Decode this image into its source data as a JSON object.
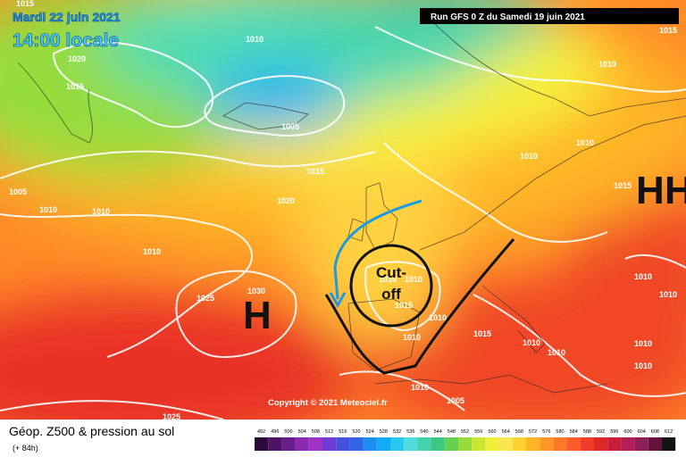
{
  "header": {
    "date": "Mardi 22 juin 2021",
    "time": "14:00 locale",
    "run": "Run GFS 0 Z du Samedi 19 juin 2021"
  },
  "isobar_labels": [
    "1015",
    "1010",
    "1020",
    "1015",
    "1015",
    "1010",
    "1005",
    "1010",
    "1010",
    "1015",
    "1005",
    "1010",
    "1010",
    "1020",
    "1015",
    "1010",
    "1025",
    "1030",
    "1010",
    "1010",
    "1015",
    "1010",
    "1010",
    "1010",
    "1010",
    "1015",
    "1010",
    "1010",
    "1010",
    "1010",
    "1010",
    "1005",
    "1025"
  ],
  "highs": [
    "H",
    "H",
    "H"
  ],
  "annotation": [
    "Cut-",
    "off"
  ],
  "copyright": "Copyright © 2021 Meteociel.fr",
  "legend": {
    "title": "Géop. Z500 & pression au sol",
    "subtitle": "(+ 84h)",
    "values": [
      492,
      496,
      500,
      504,
      508,
      512,
      516,
      520,
      524,
      528,
      532,
      536,
      540,
      544,
      548,
      552,
      556,
      560,
      564,
      568,
      572,
      576,
      580,
      584,
      588,
      592,
      596,
      600,
      604,
      608,
      612
    ],
    "colors": [
      "#2d0a3c",
      "#4b1464",
      "#6a1e8c",
      "#8c28b4",
      "#a032c8",
      "#6e3cd2",
      "#4650dc",
      "#3264e6",
      "#1e8cf0",
      "#14aaf5",
      "#28c8f0",
      "#50dcdc",
      "#46d2aa",
      "#3cc882",
      "#64d250",
      "#96dc3c",
      "#c8e632",
      "#f0f03c",
      "#fae650",
      "#ffd232",
      "#ffb428",
      "#ff9628",
      "#ff7828",
      "#ff5a28",
      "#f03c28",
      "#dc2828",
      "#c81e3c",
      "#b41e5a",
      "#8c1e5a",
      "#64143c",
      "#141414"
    ]
  }
}
